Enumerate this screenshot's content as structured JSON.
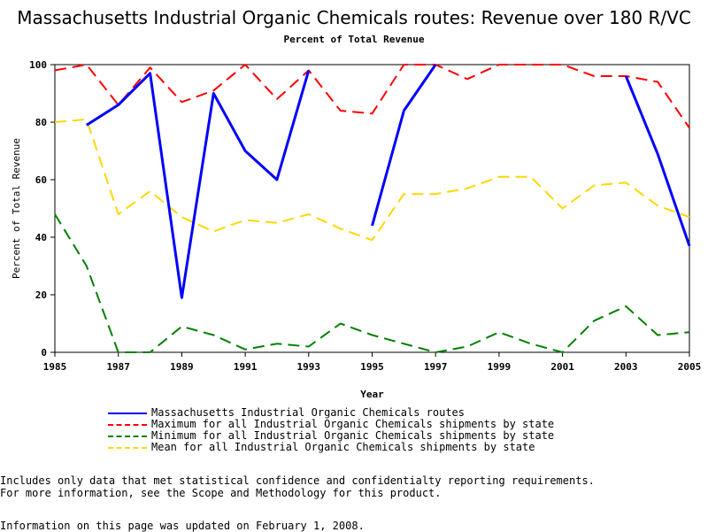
{
  "chart_data": {
    "type": "line",
    "title": "Massachusetts Industrial Organic Chemicals routes: Revenue over 180 R/VC",
    "subtitle": "Percent of Total Revenue",
    "xlabel": "Year",
    "ylabel": "Percent of Total Revenue",
    "xlim": [
      1985,
      2005
    ],
    "ylim": [
      0,
      100
    ],
    "x_ticks": [
      1985,
      1987,
      1989,
      1991,
      1993,
      1995,
      1997,
      1999,
      2001,
      2003,
      2005
    ],
    "y_ticks": [
      0,
      20,
      40,
      60,
      80,
      100
    ],
    "grid": false,
    "legend_position": "bottom",
    "x": [
      1985,
      1986,
      1987,
      1988,
      1989,
      1990,
      1991,
      1992,
      1993,
      1994,
      1995,
      1996,
      1997,
      1998,
      1999,
      2000,
      2001,
      2002,
      2003,
      2004,
      2005
    ],
    "series": [
      {
        "name": "Massachusetts Industrial Organic Chemicals routes",
        "color": "#0000ff",
        "dash": "solid",
        "values": [
          null,
          79,
          86,
          97,
          19,
          90,
          70,
          60,
          98,
          null,
          44,
          84,
          100,
          null,
          null,
          null,
          null,
          null,
          96,
          69,
          37
        ]
      },
      {
        "name": "Maximum for all Industrial Organic Chemicals shipments by state",
        "color": "#ff0000",
        "dash": "dashed",
        "values": [
          98,
          100,
          86,
          99,
          87,
          91,
          100,
          88,
          98,
          84,
          83,
          100,
          100,
          95,
          100,
          100,
          100,
          96,
          96,
          94,
          78
        ]
      },
      {
        "name": "Minimum for all Industrial Organic Chemicals shipments by state",
        "color": "#008000",
        "dash": "dashed",
        "values": [
          48,
          30,
          0,
          0,
          9,
          6,
          1,
          3,
          2,
          10,
          6,
          3,
          0,
          2,
          7,
          3,
          0,
          11,
          16,
          6,
          7
        ]
      },
      {
        "name": "Mean for all Industrial Organic Chemicals shipments by state",
        "color": "#ffd700",
        "dash": "dashed",
        "values": [
          80,
          81,
          48,
          56,
          47,
          42,
          46,
          45,
          48,
          43,
          39,
          55,
          55,
          57,
          61,
          61,
          50,
          58,
          59,
          51,
          47
        ]
      }
    ]
  },
  "notes": [
    "Includes only data that met statistical confidence and confidentialty reporting requirements.",
    "For more information, see the Scope and Methodology for this product."
  ],
  "updated": "Information on this page was updated on February 1, 2008."
}
